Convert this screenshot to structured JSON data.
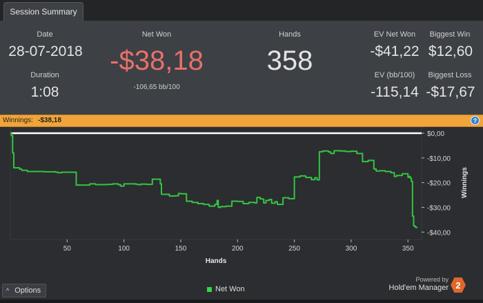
{
  "tabs": [
    {
      "label": "Session Summary",
      "active": true
    }
  ],
  "summary": {
    "date_label": "Date",
    "date": "28-07-2018",
    "duration_label": "Duration",
    "duration": "1:08",
    "net_won_label": "Net Won",
    "net_won": "-$38,18",
    "bb_per_100": "-106,65 bb/100",
    "hands_label": "Hands",
    "hands": "358",
    "ev_net_won_label": "EV Net Won",
    "ev_net_won": "-$41,22",
    "biggest_win_label": "Biggest Win",
    "biggest_win": "$12,60",
    "ev_bb100_label": "EV (bb/100)",
    "ev_bb100": "-115,14",
    "biggest_loss_label": "Biggest Loss",
    "biggest_loss": "-$17,67"
  },
  "winnings_bar": {
    "label": "Winnings:",
    "value": "-$38,18",
    "help_icon": "?"
  },
  "colors": {
    "net_won_negative": "#e8706b",
    "series_line": "#35c442",
    "zero_line": "#ffffff",
    "winnings_bar": "#f0a43a"
  },
  "chart_data": {
    "type": "line",
    "xlabel": "Hands",
    "ylabel": "Winnings",
    "x_ticks": [
      "50",
      "100",
      "150",
      "200",
      "250",
      "300",
      "350"
    ],
    "y_ticks": [
      "$0,00",
      "-$10,00",
      "-$20,00",
      "-$30,00",
      "-$40,00"
    ],
    "xlim": [
      0,
      362
    ],
    "ylim": [
      -43,
      2.5
    ],
    "grid": false,
    "legend_position": "bottom",
    "series": [
      {
        "name": "Net Won",
        "x": [
          0,
          1,
          2,
          3,
          8,
          10,
          15,
          30,
          40,
          42,
          45,
          50,
          58,
          70,
          75,
          85,
          90,
          95,
          97,
          100,
          110,
          112,
          115,
          120,
          125,
          130,
          132,
          133,
          140,
          145,
          148,
          150,
          155,
          160,
          165,
          170,
          175,
          180,
          182,
          183,
          185,
          190,
          195,
          200,
          205,
          210,
          215,
          217,
          220,
          223,
          225,
          228,
          230,
          233,
          235,
          240,
          245,
          250,
          255,
          260,
          265,
          268,
          270,
          272,
          275,
          280,
          282,
          285,
          290,
          295,
          300,
          305,
          310,
          315,
          320,
          322,
          325,
          330,
          335,
          338,
          340,
          345,
          350,
          351,
          352,
          353,
          354,
          355,
          356,
          357,
          358
        ],
        "y": [
          0,
          -1,
          -8,
          -14,
          -14.5,
          -15,
          -15.5,
          -15.6,
          -15.8,
          -16,
          -15.8,
          -15.8,
          -21,
          -20.5,
          -20.8,
          -20.7,
          -20.5,
          -20.8,
          -21.4,
          -20.5,
          -20.6,
          -20.8,
          -20.6,
          -20.7,
          -18.6,
          -18.6,
          -20.5,
          -24.7,
          -25.4,
          -25.3,
          -24.4,
          -24.5,
          -27.5,
          -28,
          -28.5,
          -28.8,
          -29.5,
          -28.8,
          -27.2,
          -30,
          -29.7,
          -29.5,
          -27.5,
          -27.6,
          -28.5,
          -28,
          -28.2,
          -26,
          -26.6,
          -28.2,
          -27.2,
          -26.8,
          -28.3,
          -27.7,
          -28.8,
          -26.1,
          -26.5,
          -17.7,
          -17.3,
          -17.9,
          -18.8,
          -18,
          -18.9,
          -7.5,
          -7.2,
          -7.6,
          -8.2,
          -7.1,
          -7.2,
          -7.4,
          -7.3,
          -8.2,
          -11.5,
          -11,
          -14.5,
          -15.3,
          -15.2,
          -15.5,
          -16,
          -17.5,
          -17.1,
          -16.4,
          -17.8,
          -17.5,
          -18.2,
          -19.5,
          -33.5,
          -37.4,
          -37.8,
          -38.2,
          -38.3
        ]
      }
    ]
  },
  "footer": {
    "options_label": "Options",
    "options_icon": "chevron-up-icon",
    "legend_label": "Net Won",
    "powered_by": "Powered by",
    "brand": "Hold'em Manager",
    "brand_logo_text": "2"
  }
}
